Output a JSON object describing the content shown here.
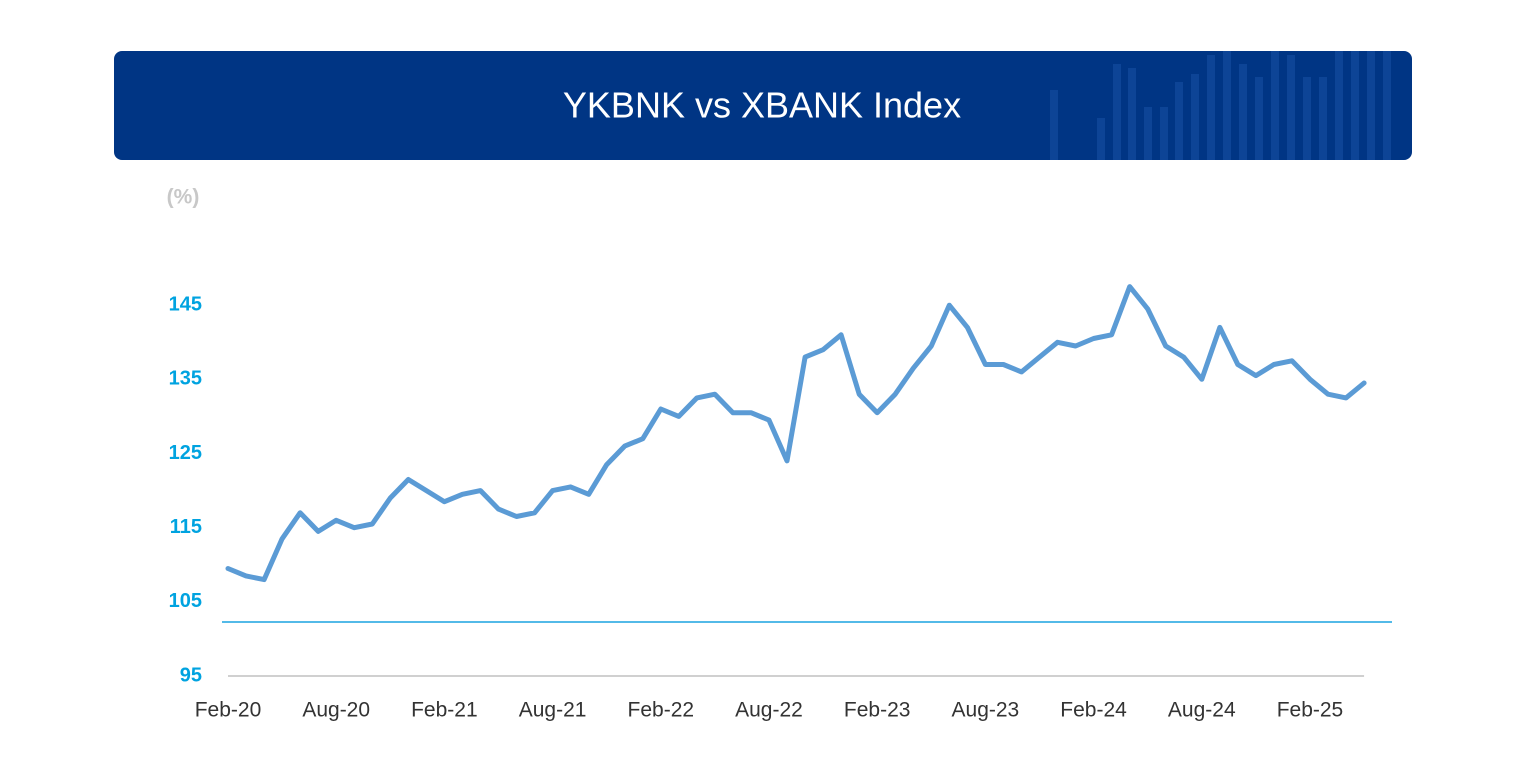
{
  "chart_data": {
    "type": "line",
    "title": "YKBNK vs XBANK Index",
    "y_label": "(%)",
    "categories": [
      "Feb-20",
      null,
      null,
      null,
      null,
      null,
      "Aug-20",
      null,
      null,
      null,
      null,
      null,
      "Feb-21",
      null,
      null,
      null,
      null,
      null,
      "Aug-21",
      null,
      null,
      null,
      null,
      null,
      "Feb-22",
      null,
      null,
      null,
      null,
      null,
      "Aug-22",
      null,
      null,
      null,
      null,
      null,
      "Feb-23",
      null,
      null,
      null,
      null,
      null,
      "Aug-23",
      null,
      null,
      null,
      null,
      null,
      "Feb-24",
      null,
      null,
      null,
      null,
      null,
      "Aug-24",
      null,
      null,
      null,
      null,
      null,
      "Feb-25",
      null,
      null,
      null
    ],
    "series": [
      {
        "color": "#5b9bd5",
        "values": [
          109.5,
          108.5,
          108,
          113.5,
          117,
          114.5,
          116,
          115,
          115.5,
          119,
          121.5,
          120,
          118.5,
          119.5,
          120,
          117.5,
          116.5,
          117,
          120,
          120.5,
          119.5,
          123.5,
          126,
          127,
          131,
          130,
          132.5,
          133,
          130.5,
          130.5,
          129.5,
          124,
          138,
          139,
          141,
          133,
          130.5,
          133,
          136.5,
          139.5,
          145,
          142,
          137,
          137,
          136,
          138,
          140,
          139.5,
          140.5,
          141,
          147.5,
          144.5,
          139.5,
          138,
          135,
          142,
          137,
          135.5,
          137,
          137.5,
          135,
          133,
          132.5,
          134.5
        ]
      }
    ],
    "ylim": [
      95,
      155
    ],
    "yticks": [
      95,
      105,
      115,
      125,
      135,
      145
    ],
    "grid": false
  }
}
